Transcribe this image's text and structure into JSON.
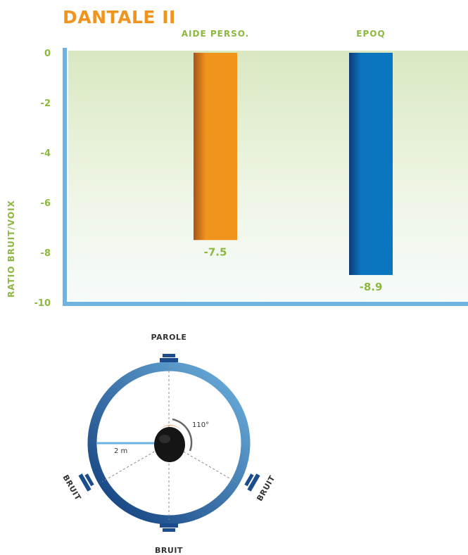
{
  "chart_data": {
    "type": "bar",
    "title": "DANTALE II",
    "ylabel": "RATIO BRUIT/VOIX",
    "categories": [
      "AIDE PERSO.",
      "EPOQ"
    ],
    "values": [
      -7.5,
      -8.9
    ],
    "value_labels": [
      "-7.5",
      "-8.9"
    ],
    "ylim": [
      -10,
      0
    ],
    "yticks": [
      0,
      -2,
      -4,
      -6,
      -8,
      -10
    ],
    "colors": [
      "#f0941d",
      "#0a76c0"
    ],
    "grid": false,
    "legend": "none"
  },
  "diagram": {
    "speaker_top": "PAROLE",
    "speaker_left": "BRUIT",
    "speaker_right": "BRUIT",
    "speaker_bottom": "BRUIT",
    "radius_label": "2 m",
    "angle_label": "110°"
  }
}
